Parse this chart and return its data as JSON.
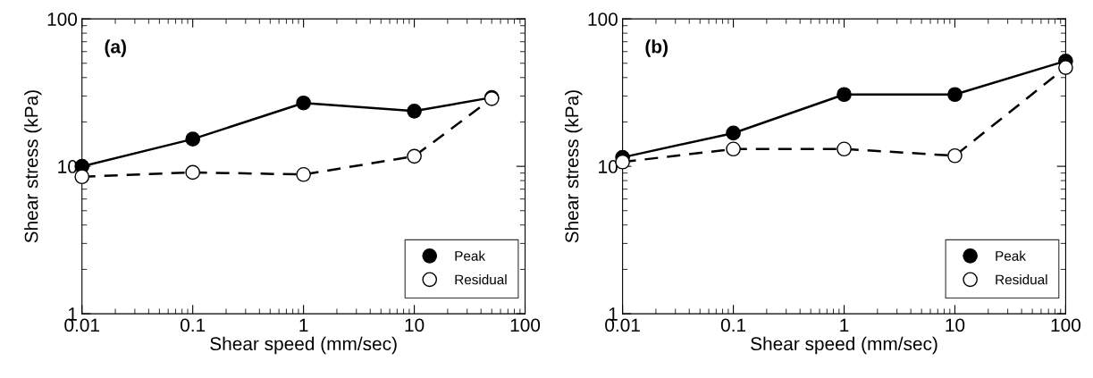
{
  "chart_data": [
    {
      "type": "line",
      "annotations": [
        "(a)"
      ],
      "xlabel": "Shear speed (mm/sec)",
      "ylabel": "Shear stress (kPa)",
      "log": "xy",
      "xlim": [
        0.01,
        100
      ],
      "xticks": [
        {
          "value": 0.01,
          "label": "0.01"
        },
        {
          "value": 0.1,
          "label": "0.1"
        },
        {
          "value": 1,
          "label": "1"
        },
        {
          "value": 10,
          "label": "10"
        },
        {
          "value": 100,
          "label": "100"
        }
      ],
      "ylim": [
        1,
        100
      ],
      "yticks": [
        {
          "value": 1,
          "label": "1"
        },
        {
          "value": 10,
          "label": "10"
        },
        {
          "value": 100,
          "label": "100"
        }
      ],
      "grid": false,
      "legend": "bottom right",
      "marker": "circle",
      "series": [
        {
          "name": "Peak",
          "color": "#000000",
          "line_style": "solid",
          "x": [
            0.01,
            0.1,
            1,
            10,
            50
          ],
          "values": [
            10,
            15.3,
            26.9,
            23.7,
            29.3
          ]
        },
        {
          "name": "Residual",
          "color": "#000000",
          "line_style": "dashed",
          "x": [
            0.01,
            0.1,
            1,
            10,
            50
          ],
          "values": [
            8.5,
            9.1,
            8.8,
            11.7,
            28.8
          ]
        }
      ]
    },
    {
      "type": "line",
      "annotations": [
        "(b)"
      ],
      "xlabel": "Shear speed (mm/sec)",
      "ylabel": "Shear stress (kPa)",
      "log": "xy",
      "xlim": [
        0.01,
        100
      ],
      "xticks": [
        {
          "value": 0.01,
          "label": "0.01"
        },
        {
          "value": 0.1,
          "label": "0.1"
        },
        {
          "value": 1,
          "label": "1"
        },
        {
          "value": 10,
          "label": "10"
        },
        {
          "value": 100,
          "label": "100"
        }
      ],
      "ylim": [
        1,
        100
      ],
      "yticks": [
        {
          "value": 1,
          "label": "1"
        },
        {
          "value": 10,
          "label": "10"
        },
        {
          "value": 100,
          "label": "100"
        }
      ],
      "grid": false,
      "legend": "bottom right",
      "marker": "circle",
      "series": [
        {
          "name": "Peak",
          "color": "#000000",
          "line_style": "solid",
          "x": [
            0.01,
            0.1,
            1,
            10,
            100
          ],
          "values": [
            11.5,
            16.8,
            30.7,
            30.7,
            51.8
          ]
        },
        {
          "name": "Residual",
          "color": "#000000",
          "line_style": "dashed",
          "x": [
            0.01,
            0.1,
            1,
            10,
            100
          ],
          "values": [
            10.7,
            13.1,
            13.1,
            11.8,
            46.8
          ]
        }
      ]
    }
  ]
}
